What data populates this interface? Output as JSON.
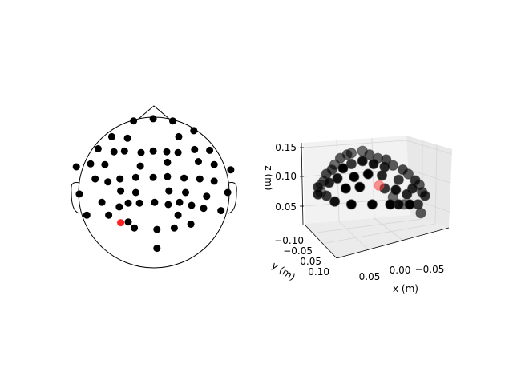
{
  "chart_data": [
    {
      "type": "scatter",
      "panel": "topomap-2d",
      "title": "",
      "marker_color": "#000000",
      "highlight_color": "#ff2020",
      "points": [
        {
          "x": -0.27,
          "y": 0.95
        },
        {
          "x": -0.01,
          "y": 0.98
        },
        {
          "x": 0.25,
          "y": 0.95
        },
        {
          "x": -0.56,
          "y": 0.74
        },
        {
          "x": -0.35,
          "y": 0.72
        },
        {
          "x": 0.33,
          "y": 0.74
        },
        {
          "x": 0.53,
          "y": 0.82
        },
        {
          "x": -0.74,
          "y": 0.58
        },
        {
          "x": -0.53,
          "y": 0.54
        },
        {
          "x": -0.39,
          "y": 0.55
        },
        {
          "x": -0.17,
          "y": 0.53
        },
        {
          "x": -0.01,
          "y": 0.55
        },
        {
          "x": 0.17,
          "y": 0.54
        },
        {
          "x": 0.32,
          "y": 0.53
        },
        {
          "x": 0.54,
          "y": 0.57
        },
        {
          "x": 0.74,
          "y": 0.56
        },
        {
          "x": -0.84,
          "y": 0.38
        },
        {
          "x": -0.65,
          "y": 0.37
        },
        {
          "x": -0.18,
          "y": 0.35
        },
        {
          "x": 0.18,
          "y": 0.4
        },
        {
          "x": 0.59,
          "y": 0.41
        },
        {
          "x": 0.8,
          "y": 0.37
        },
        {
          "x": -1.03,
          "y": 0.34
        },
        {
          "x": 1.02,
          "y": 0.3
        },
        {
          "x": -0.78,
          "y": 0.18
        },
        {
          "x": -0.61,
          "y": 0.14
        },
        {
          "x": -0.45,
          "y": 0.18
        },
        {
          "x": -0.24,
          "y": 0.2
        },
        {
          "x": -0.01,
          "y": 0.2
        },
        {
          "x": 0.18,
          "y": 0.21
        },
        {
          "x": 0.4,
          "y": 0.19
        },
        {
          "x": 0.61,
          "y": 0.18
        },
        {
          "x": 0.8,
          "y": 0.15
        },
        {
          "x": -0.99,
          "y": -0.02
        },
        {
          "x": -0.44,
          "y": 0.02
        },
        {
          "x": -0.24,
          "y": 0.0
        },
        {
          "x": 0.2,
          "y": 0.02
        },
        {
          "x": 0.42,
          "y": 0.0
        },
        {
          "x": 0.7,
          "y": -0.05
        },
        {
          "x": 0.98,
          "y": 0.0
        },
        {
          "x": -0.69,
          "y": -0.13
        },
        {
          "x": -0.46,
          "y": -0.19
        },
        {
          "x": -0.34,
          "y": -0.14
        },
        {
          "x": -0.19,
          "y": -0.14
        },
        {
          "x": 0.01,
          "y": -0.13
        },
        {
          "x": 0.19,
          "y": -0.16
        },
        {
          "x": 0.34,
          "y": -0.13
        },
        {
          "x": 0.5,
          "y": -0.17
        },
        {
          "x": 0.66,
          "y": -0.21
        },
        {
          "x": -0.89,
          "y": -0.3
        },
        {
          "x": -0.6,
          "y": -0.3
        },
        {
          "x": 0.32,
          "y": -0.3
        },
        {
          "x": 0.89,
          "y": -0.24
        },
        {
          "x": -0.34,
          "y": -0.39
        },
        {
          "x": -0.26,
          "y": -0.47
        },
        {
          "x": 0.27,
          "y": -0.47
        },
        {
          "x": 0.49,
          "y": -0.42
        },
        {
          "x": 0.04,
          "y": -0.49
        },
        {
          "x": 0.04,
          "y": -0.74
        }
      ],
      "highlight": [
        {
          "x": -0.44,
          "y": -0.4
        }
      ]
    },
    {
      "type": "scatter",
      "panel": "sensors-3d",
      "title": "",
      "xlabel": "x (m)",
      "ylabel": "y (m)",
      "zlabel": "z (m)",
      "x_ticks": [
        "0.05",
        "0.00",
        "−0.05"
      ],
      "y_ticks": [
        "−0.10",
        "−0.05",
        "0.05",
        "0.10"
      ],
      "z_ticks": [
        "0.15",
        "0.10",
        "0.05"
      ],
      "zlim": [
        0.02,
        0.16
      ],
      "marker_color": "#000000",
      "highlight_color": "#ff4040",
      "points": [
        {
          "u": 0.12,
          "z": 0.082,
          "depth": 0.2
        },
        {
          "u": 0.14,
          "z": 0.085,
          "depth": 0.7
        },
        {
          "u": 0.12,
          "z": 0.092,
          "depth": 0.3
        },
        {
          "u": 0.14,
          "z": 0.095,
          "depth": 0.7
        },
        {
          "u": 0.16,
          "z": 0.1,
          "depth": 0.5
        },
        {
          "u": 0.18,
          "z": 0.11,
          "depth": 0.4
        },
        {
          "u": 0.22,
          "z": 0.116,
          "depth": 0.4
        },
        {
          "u": 0.24,
          "z": 0.123,
          "depth": 0.6
        },
        {
          "u": 0.28,
          "z": 0.132,
          "depth": 0.5
        },
        {
          "u": 0.33,
          "z": 0.137,
          "depth": 0.5
        },
        {
          "u": 0.36,
          "z": 0.139,
          "depth": 0.6
        },
        {
          "u": 0.44,
          "z": 0.142,
          "depth": 0.6
        },
        {
          "u": 0.49,
          "z": 0.137,
          "depth": 0.5
        },
        {
          "u": 0.55,
          "z": 0.132,
          "depth": 0.5
        },
        {
          "u": 0.61,
          "z": 0.13,
          "depth": 0.4
        },
        {
          "u": 0.66,
          "z": 0.122,
          "depth": 0.5
        },
        {
          "u": 0.73,
          "z": 0.116,
          "depth": 0.4
        },
        {
          "u": 0.77,
          "z": 0.11,
          "depth": 0.5
        },
        {
          "u": 0.82,
          "z": 0.101,
          "depth": 0.3
        },
        {
          "u": 0.85,
          "z": 0.095,
          "depth": 0.5
        },
        {
          "u": 0.87,
          "z": 0.085,
          "depth": 0.4
        },
        {
          "u": 0.89,
          "z": 0.08,
          "depth": 0.3
        },
        {
          "u": 0.3,
          "z": 0.118,
          "depth": 0.0
        },
        {
          "u": 0.36,
          "z": 0.124,
          "depth": 0.3
        },
        {
          "u": 0.44,
          "z": 0.128,
          "depth": 0.1
        },
        {
          "u": 0.52,
          "z": 0.124,
          "depth": 0.1
        },
        {
          "u": 0.6,
          "z": 0.12,
          "depth": 0.2
        },
        {
          "u": 0.2,
          "z": 0.098,
          "depth": 0.2
        },
        {
          "u": 0.26,
          "z": 0.104,
          "depth": 0.1
        },
        {
          "u": 0.38,
          "z": 0.106,
          "depth": 0.0
        },
        {
          "u": 0.48,
          "z": 0.11,
          "depth": 0.0
        },
        {
          "u": 0.58,
          "z": 0.108,
          "depth": 0.2
        },
        {
          "u": 0.7,
          "z": 0.102,
          "depth": 0.3
        },
        {
          "u": 0.8,
          "z": 0.09,
          "depth": 0.2
        },
        {
          "u": 0.32,
          "z": 0.09,
          "depth": 0.0
        },
        {
          "u": 0.42,
          "z": 0.092,
          "depth": 0.0
        },
        {
          "u": 0.6,
          "z": 0.09,
          "depth": 0.3
        },
        {
          "u": 0.68,
          "z": 0.088,
          "depth": 0.1
        },
        {
          "u": 0.76,
          "z": 0.082,
          "depth": 0.2
        },
        {
          "u": 0.18,
          "z": 0.08,
          "depth": 0.3
        },
        {
          "u": 0.24,
          "z": 0.072,
          "depth": 0.1
        },
        {
          "u": 0.36,
          "z": 0.068,
          "depth": 0.0
        },
        {
          "u": 0.51,
          "z": 0.068,
          "depth": 0.0
        },
        {
          "u": 0.64,
          "z": 0.068,
          "depth": 0.0
        },
        {
          "u": 0.7,
          "z": 0.068,
          "depth": 0.1
        },
        {
          "u": 0.78,
          "z": 0.068,
          "depth": 0.0
        },
        {
          "u": 0.74,
          "z": 0.068,
          "depth": 0.6
        },
        {
          "u": 0.84,
          "z": 0.068,
          "depth": 0.3
        },
        {
          "u": 0.86,
          "z": 0.056,
          "depth": 0.5
        },
        {
          "u": 0.66,
          "z": 0.078,
          "depth": 0.6
        }
      ],
      "highlight": [
        {
          "u": 0.56,
          "z": 0.094,
          "depth": 0.0
        }
      ]
    }
  ]
}
